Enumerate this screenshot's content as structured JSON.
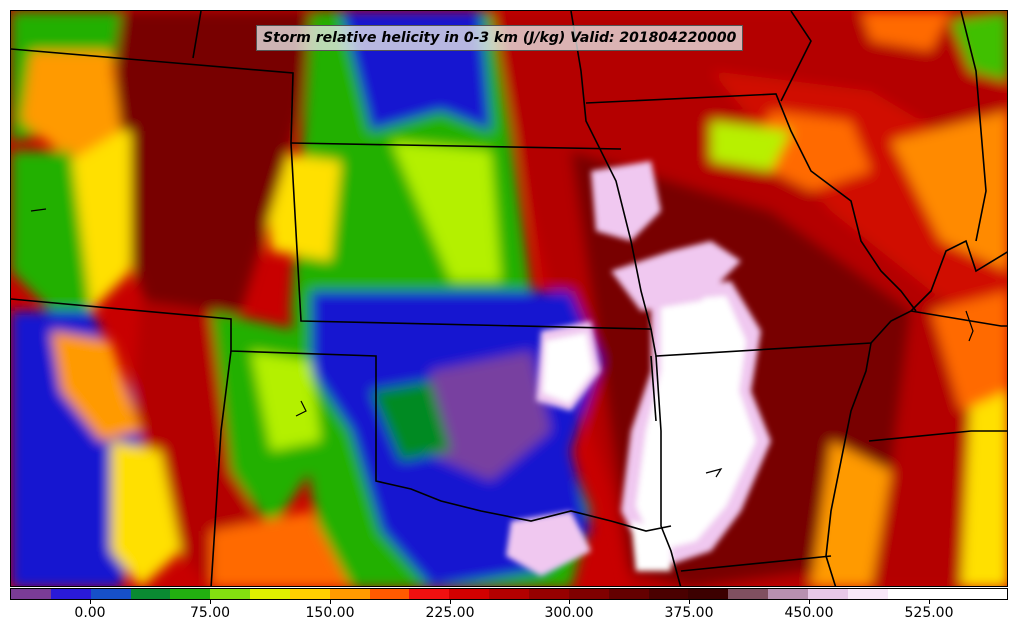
{
  "map": {
    "title": "Storm relative helicity in 0-3 km (J/kg) Valid: 201804220000",
    "field": "storm-relative-helicity-0-3km",
    "units": "J/kg",
    "region": "central-us",
    "colors": {
      "white_max": "#ffffff",
      "pink_high": "#f0c8f0",
      "dark_red": "#5a0000",
      "red": "#c80000",
      "orange": "#ff6a00",
      "yellow": "#ffe000",
      "lime": "#b4f000",
      "green": "#22b000",
      "dark_green": "#008a20",
      "blue": "#1414d0",
      "purple": "#7840a0"
    }
  },
  "colorbar": {
    "segment_colors": [
      "#7a3c96",
      "#2a1ad8",
      "#1650c8",
      "#0a8a32",
      "#22b010",
      "#84e010",
      "#e0f000",
      "#ffd000",
      "#ff9a00",
      "#ff5a00",
      "#f01010",
      "#d20000",
      "#b40000",
      "#960000",
      "#800000",
      "#640000",
      "#4a0000",
      "#3c0000",
      "#805060",
      "#b890b0",
      "#e8c8e8",
      "#f8e8f8",
      "#ffffff",
      "#ffffff",
      "#ffffff"
    ],
    "ticks": [
      {
        "value": "0.00",
        "frac": 0.0805
      },
      {
        "value": "75.00",
        "frac": 0.2005
      },
      {
        "value": "150.00",
        "frac": 0.3205
      },
      {
        "value": "225.00",
        "frac": 0.4405
      },
      {
        "value": "300.00",
        "frac": 0.5605
      },
      {
        "value": "375.00",
        "frac": 0.6805
      },
      {
        "value": "450.00",
        "frac": 0.8005
      },
      {
        "value": "525.00",
        "frac": 0.9205
      }
    ]
  }
}
